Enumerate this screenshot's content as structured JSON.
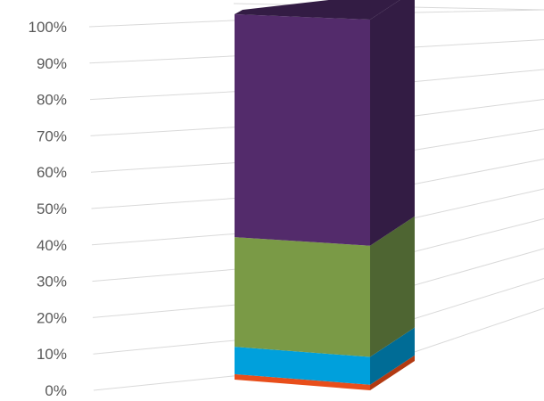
{
  "chart_data": {
    "type": "bar",
    "style": "3d-stacked-100-percent",
    "categories": [
      ""
    ],
    "series": [
      {
        "values": [
          1.5
        ],
        "color": "#E84E1B",
        "side_color": "#B23A12"
      },
      {
        "values": [
          7.5
        ],
        "color": "#00A0DC",
        "side_color": "#006C96"
      },
      {
        "values": [
          30
        ],
        "color": "#7A9A46",
        "side_color": "#4E6532"
      },
      {
        "values": [
          61
        ],
        "color": "#532B6B",
        "side_color": "#331C44"
      }
    ],
    "y_ticks": [
      "0%",
      "10%",
      "20%",
      "30%",
      "40%",
      "50%",
      "60%",
      "70%",
      "80%",
      "90%",
      "100%"
    ],
    "ylim": [
      0,
      100
    ],
    "grid": true,
    "legend": "none",
    "colors": {
      "gridline": "#D9D9D9",
      "tick_text": "#595959"
    }
  }
}
